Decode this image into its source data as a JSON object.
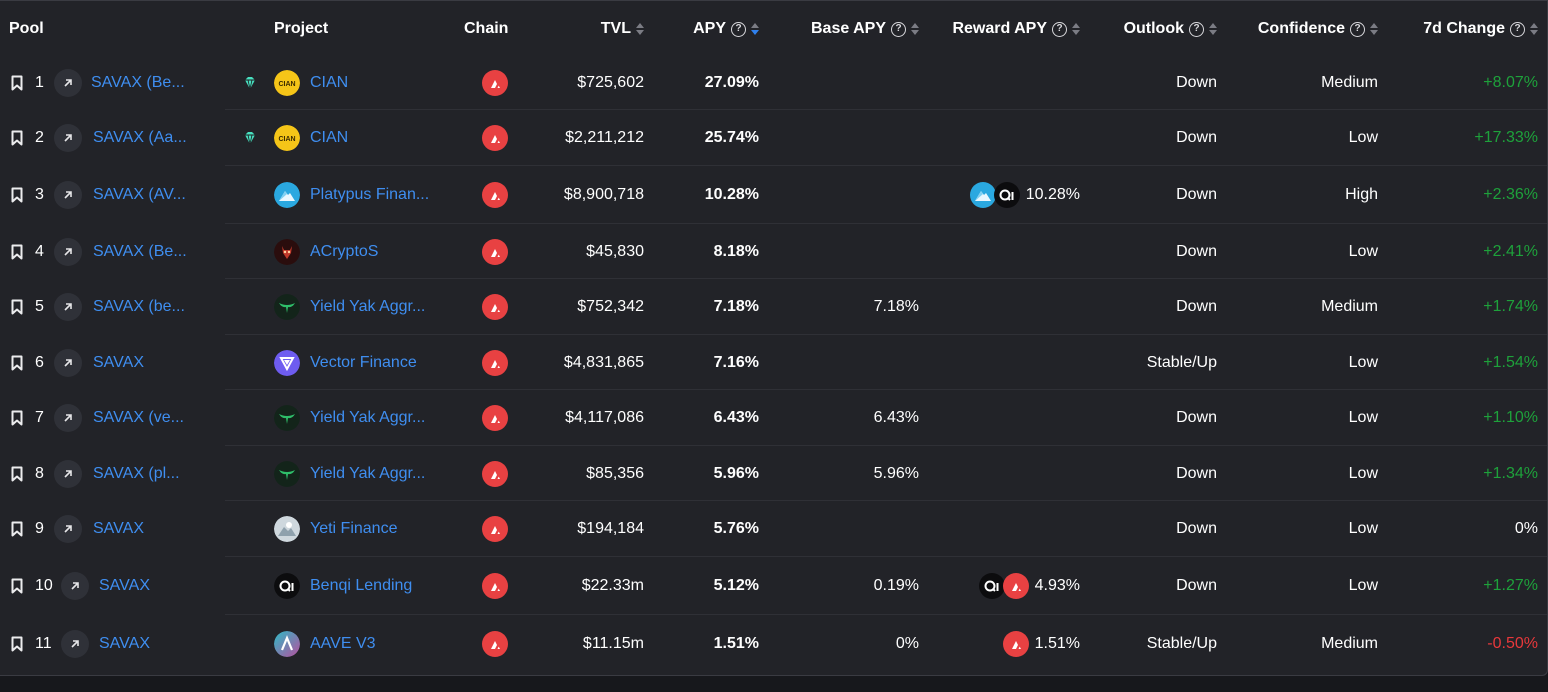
{
  "headers": {
    "pool": "Pool",
    "project": "Project",
    "chain": "Chain",
    "tvl": "TVL",
    "apy": "APY",
    "base_apy": "Base APY",
    "reward_apy": "Reward APY",
    "outlook": "Outlook",
    "confidence": "Confidence",
    "change_7d": "7d Change"
  },
  "colors": {
    "link": "#3f8ef0",
    "positive": "#1ea13b",
    "negative": "#e8383b",
    "avalanche": "#e84142",
    "sort_active": "#2f80ed"
  },
  "rows": [
    {
      "index": "1",
      "pool": "SAVAX (Be...",
      "project": "CIAN",
      "project_logo": "cian-logo",
      "tvl": "$725,602",
      "apy": "27.09%",
      "base_apy": "",
      "reward_apy": "",
      "reward_icons": [],
      "outlook": "Down",
      "confidence": "Medium",
      "change_7d": "+8.07%",
      "change_sign": "positive",
      "gem": true
    },
    {
      "index": "2",
      "pool": "SAVAX (Aa...",
      "project": "CIAN",
      "project_logo": "cian-logo",
      "tvl": "$2,211,212",
      "apy": "25.74%",
      "base_apy": "",
      "reward_apy": "",
      "reward_icons": [],
      "outlook": "Down",
      "confidence": "Low",
      "change_7d": "+17.33%",
      "change_sign": "positive",
      "gem": true
    },
    {
      "index": "3",
      "pool": "SAVAX (AV...",
      "project": "Platypus Finan...",
      "project_logo": "platypus-logo",
      "tvl": "$8,900,718",
      "apy": "10.28%",
      "base_apy": "",
      "reward_apy": "10.28%",
      "reward_icons": [
        "platypus",
        "qi"
      ],
      "outlook": "Down",
      "confidence": "High",
      "change_7d": "+2.36%",
      "change_sign": "positive",
      "gem": false
    },
    {
      "index": "4",
      "pool": "SAVAX (Be...",
      "project": "ACryptoS",
      "project_logo": "acryptos-logo",
      "tvl": "$45,830",
      "apy": "8.18%",
      "base_apy": "",
      "reward_apy": "",
      "reward_icons": [],
      "outlook": "Down",
      "confidence": "Low",
      "change_7d": "+2.41%",
      "change_sign": "positive",
      "gem": false
    },
    {
      "index": "5",
      "pool": "SAVAX (be...",
      "project": "Yield Yak Aggr...",
      "project_logo": "yieldyak-logo",
      "tvl": "$752,342",
      "apy": "7.18%",
      "base_apy": "7.18%",
      "reward_apy": "",
      "reward_icons": [],
      "outlook": "Down",
      "confidence": "Medium",
      "change_7d": "+1.74%",
      "change_sign": "positive",
      "gem": false
    },
    {
      "index": "6",
      "pool": "SAVAX",
      "project": "Vector Finance",
      "project_logo": "vector-logo",
      "tvl": "$4,831,865",
      "apy": "7.16%",
      "base_apy": "",
      "reward_apy": "",
      "reward_icons": [],
      "outlook": "Stable/Up",
      "confidence": "Low",
      "change_7d": "+1.54%",
      "change_sign": "positive",
      "gem": false
    },
    {
      "index": "7",
      "pool": "SAVAX (ve...",
      "project": "Yield Yak Aggr...",
      "project_logo": "yieldyak-logo",
      "tvl": "$4,117,086",
      "apy": "6.43%",
      "base_apy": "6.43%",
      "reward_apy": "",
      "reward_icons": [],
      "outlook": "Down",
      "confidence": "Low",
      "change_7d": "+1.10%",
      "change_sign": "positive",
      "gem": false
    },
    {
      "index": "8",
      "pool": "SAVAX (pl...",
      "project": "Yield Yak Aggr...",
      "project_logo": "yieldyak-logo",
      "tvl": "$85,356",
      "apy": "5.96%",
      "base_apy": "5.96%",
      "reward_apy": "",
      "reward_icons": [],
      "outlook": "Down",
      "confidence": "Low",
      "change_7d": "+1.34%",
      "change_sign": "positive",
      "gem": false
    },
    {
      "index": "9",
      "pool": "SAVAX",
      "project": "Yeti Finance",
      "project_logo": "yeti-logo",
      "tvl": "$194,184",
      "apy": "5.76%",
      "base_apy": "",
      "reward_apy": "",
      "reward_icons": [],
      "outlook": "Down",
      "confidence": "Low",
      "change_7d": "0%",
      "change_sign": "neutral",
      "gem": false
    },
    {
      "index": "10",
      "pool": "SAVAX",
      "project": "Benqi Lending",
      "project_logo": "benqi-logo",
      "tvl": "$22.33m",
      "apy": "5.12%",
      "base_apy": "0.19%",
      "reward_apy": "4.93%",
      "reward_icons": [
        "qi",
        "avax"
      ],
      "outlook": "Down",
      "confidence": "Low",
      "change_7d": "+1.27%",
      "change_sign": "positive",
      "gem": false
    },
    {
      "index": "11",
      "pool": "SAVAX",
      "project": "AAVE V3",
      "project_logo": "aave-logo",
      "tvl": "$11.15m",
      "apy": "1.51%",
      "base_apy": "0%",
      "reward_apy": "1.51%",
      "reward_icons": [
        "avax"
      ],
      "outlook": "Stable/Up",
      "confidence": "Medium",
      "change_7d": "-0.50%",
      "change_sign": "negative",
      "gem": false
    }
  ]
}
